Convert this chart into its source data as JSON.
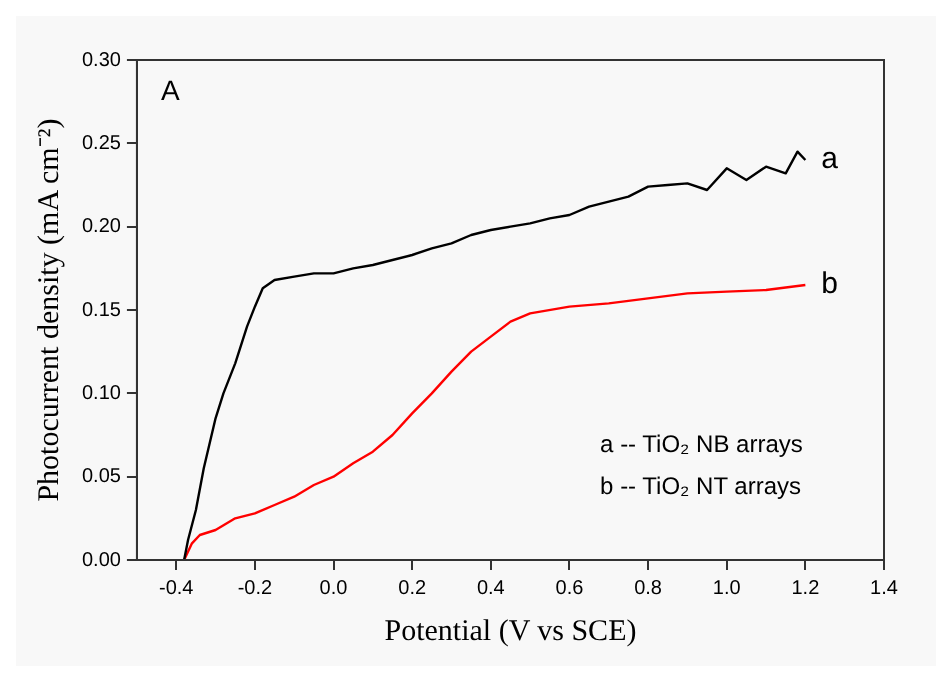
{
  "chart_data": {
    "type": "line",
    "xlabel": "Potential (V vs SCE)",
    "ylabel": "Photocurrent density (mA cm⁻²)",
    "annotations": [
      "A",
      "a -- TiO₂ NB arrays",
      "b -- TiO₂ NT arrays",
      {
        "text": "a",
        "x": 1.2,
        "y": 0.24
      },
      {
        "text": "b",
        "x": 1.2,
        "y": 0.165
      }
    ],
    "series": [
      {
        "color": "#000000",
        "x": [
          -0.38,
          -0.37,
          -0.35,
          -0.33,
          -0.3,
          -0.28,
          -0.25,
          -0.22,
          -0.2,
          -0.18,
          -0.15,
          -0.1,
          -0.05,
          0,
          0.05,
          0.1,
          0.15,
          0.2,
          0.25,
          0.3,
          0.35,
          0.4,
          0.45,
          0.5,
          0.55,
          0.6,
          0.65,
          0.7,
          0.75,
          0.8,
          0.85,
          0.9,
          0.95,
          1.0,
          1.05,
          1.1,
          1.15,
          1.18,
          1.2
        ],
        "values": [
          0,
          0.012,
          0.03,
          0.055,
          0.085,
          0.1,
          0.118,
          0.14,
          0.152,
          0.163,
          0.168,
          0.17,
          0.172,
          0.172,
          0.175,
          0.177,
          0.18,
          0.183,
          0.187,
          0.19,
          0.195,
          0.198,
          0.2,
          0.202,
          0.205,
          0.207,
          0.212,
          0.215,
          0.218,
          0.224,
          0.225,
          0.226,
          0.222,
          0.235,
          0.228,
          0.236,
          0.232,
          0.245,
          0.24
        ]
      },
      {
        "color": "#ff0000",
        "x": [
          -0.38,
          -0.36,
          -0.34,
          -0.3,
          -0.25,
          -0.2,
          -0.15,
          -0.1,
          -0.05,
          0,
          0.05,
          0.1,
          0.15,
          0.2,
          0.25,
          0.3,
          0.35,
          0.4,
          0.45,
          0.5,
          0.6,
          0.7,
          0.8,
          0.9,
          1.0,
          1.1,
          1.2
        ],
        "values": [
          0,
          0.01,
          0.015,
          0.018,
          0.025,
          0.028,
          0.033,
          0.038,
          0.045,
          0.05,
          0.058,
          0.065,
          0.075,
          0.088,
          0.1,
          0.113,
          0.125,
          0.134,
          0.143,
          0.148,
          0.152,
          0.154,
          0.157,
          0.16,
          0.161,
          0.162,
          0.165
        ]
      }
    ],
    "xlim": [
      -0.5,
      1.4
    ],
    "xticks": [
      -0.4,
      -0.2,
      {
        "value": 0,
        "label": "0.0"
      },
      0.2,
      0.4,
      0.6,
      0.8,
      {
        "value": 1,
        "label": "1.0"
      },
      1.2,
      1.4
    ],
    "ylim": [
      0,
      0.3
    ],
    "yticks": [
      {
        "value": 0,
        "label": "0.00"
      },
      0.05,
      {
        "value": 0.1,
        "label": "0.10"
      },
      0.15,
      {
        "value": 0.2,
        "label": "0.20"
      },
      0.25,
      {
        "value": 0.3,
        "label": "0.30"
      }
    ],
    "grid": false,
    "legend": false,
    "marker": "none",
    "line_style": "solid"
  }
}
